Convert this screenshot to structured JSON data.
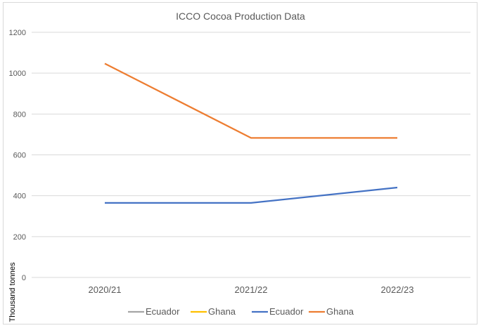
{
  "chart_data": {
    "type": "line",
    "title": "ICCO Cocoa Production Data",
    "ylabel": "Thousand tonnes",
    "xlabel": "",
    "categories": [
      "2020/21",
      "2021/22",
      "2022/23"
    ],
    "ylim": [
      0,
      1200
    ],
    "yticks": [
      "0",
      "200",
      "400",
      "600",
      "800",
      "1000",
      "1200"
    ],
    "grid": true,
    "legend_position": "bottom",
    "series": [
      {
        "name": "Ecuador",
        "color": "#a5a5a5",
        "values": null
      },
      {
        "name": "Ghana",
        "color": "#ffc000",
        "values": null
      },
      {
        "name": "Ecuador",
        "color": "#4472c4",
        "values": [
          365,
          365,
          440
        ]
      },
      {
        "name": "Ghana",
        "color": "#ed7d31",
        "values": [
          1047,
          683,
          683
        ]
      }
    ]
  }
}
